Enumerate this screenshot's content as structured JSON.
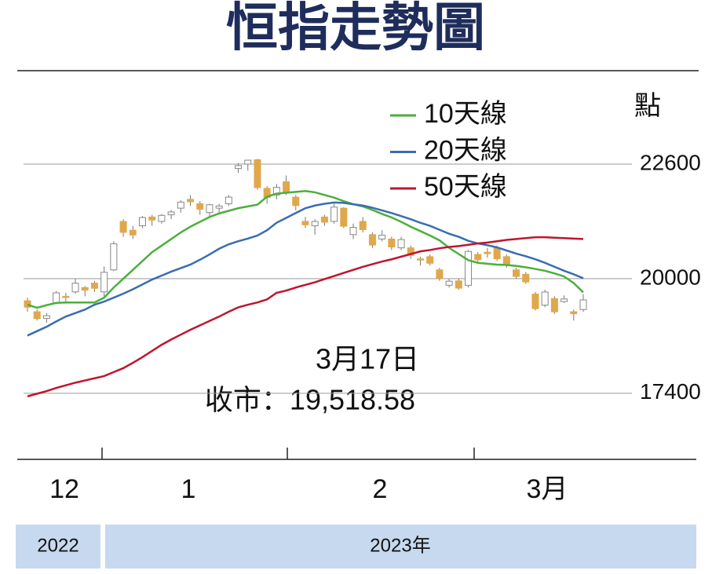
{
  "chart_data": {
    "type": "candlestick",
    "title": "恒指走勢圖",
    "y_label": "點",
    "categories": [
      null,
      null,
      null,
      null,
      null,
      null,
      null,
      null,
      null,
      null,
      null,
      null,
      null,
      null,
      null,
      null,
      null,
      null,
      null,
      null,
      null,
      null,
      null,
      null,
      null,
      null,
      null,
      null,
      null,
      null,
      null,
      null,
      null,
      null,
      null,
      null,
      null,
      null,
      null,
      null,
      null,
      null,
      null,
      null,
      null,
      null,
      null,
      null,
      null,
      null,
      null,
      null,
      null,
      null,
      null,
      null,
      null,
      null,
      null
    ],
    "open": [
      19500,
      19250,
      19100,
      19450,
      19600,
      19700,
      19800,
      19900,
      19700,
      20200,
      21300,
      21100,
      21200,
      21400,
      21300,
      21450,
      21600,
      21800,
      21700,
      21500,
      21600,
      21700,
      22500,
      22600,
      22700,
      22050,
      21900,
      22200,
      21850,
      21300,
      21200,
      21400,
      21300,
      21600,
      21000,
      21300,
      21000,
      20900,
      20900,
      20700,
      20700,
      20450,
      20500,
      20200,
      19850,
      19950,
      19850,
      20550,
      20600,
      20700,
      20500,
      20200,
      20100,
      19650,
      19400,
      19550,
      19480,
      19250,
      19300
    ],
    "high": [
      19570,
      19300,
      19220,
      19720,
      19680,
      20000,
      19830,
      19950,
      20280,
      20850,
      21350,
      21200,
      21420,
      21450,
      21470,
      21560,
      21780,
      21900,
      21760,
      21700,
      21700,
      21900,
      22620,
      22700,
      22720,
      22100,
      22150,
      22340,
      21900,
      21400,
      21350,
      21450,
      21700,
      21620,
      21250,
      21400,
      21050,
      21100,
      20950,
      20950,
      20750,
      20500,
      20550,
      20250,
      20000,
      20000,
      20650,
      20600,
      20700,
      20750,
      20550,
      20250,
      20150,
      19700,
      19750,
      19600,
      19620,
      19300,
      19650
    ],
    "low": [
      19250,
      19050,
      19000,
      19420,
      19480,
      19660,
      19600,
      19700,
      19600,
      20170,
      20950,
      20900,
      21150,
      21200,
      21250,
      21350,
      21500,
      21650,
      21450,
      21400,
      21480,
      21650,
      22400,
      22450,
      22020,
      21700,
      21800,
      21900,
      21550,
      21150,
      21000,
      21200,
      21250,
      21150,
      20900,
      21050,
      20700,
      20850,
      20650,
      20650,
      20450,
      20300,
      20300,
      19950,
      19800,
      19750,
      19800,
      20350,
      20480,
      20400,
      20250,
      20000,
      19880,
      19280,
      19350,
      19200,
      19450,
      19050,
      19250
    ],
    "close": [
      19352,
      19094,
      19160,
      19679,
      19593,
      19898,
      19741,
      19781,
      20145,
      20793,
      21052,
      20991,
      21388,
      21331,
      21436,
      21514,
      21738,
      21746,
      21578,
      21678,
      21650,
      21851,
      22566,
      22689,
      22069,
      21842,
      22072,
      21958,
      21660,
      21222,
      21298,
      21283,
      21624,
      21190,
      21164,
      21113,
      20764,
      20987,
      20719,
      20887,
      20529,
      20423,
      20351,
      20010,
      19943,
      19786,
      20619,
      20429,
      20568,
      20453,
      20315,
      20051,
      19926,
      19320,
      19696,
      19248,
      19539,
      19204,
      19518.58
    ],
    "up_color": "#ffffff",
    "down_color": "#e0a84a",
    "series": [
      {
        "name": "10天線",
        "color": "#4caf3c",
        "values": [
          19410,
          19340,
          19400,
          19450,
          19460,
          19460,
          19460,
          19460,
          19570,
          19800,
          20000,
          20200,
          20400,
          20600,
          20750,
          20900,
          21050,
          21180,
          21290,
          21400,
          21480,
          21540,
          21600,
          21640,
          21680,
          21860,
          21930,
          21950,
          21970,
          21990,
          21960,
          21900,
          21840,
          21760,
          21690,
          21640,
          21560,
          21470,
          21390,
          21290,
          21180,
          21080,
          20980,
          20870,
          20700,
          20560,
          20420,
          20360,
          20340,
          20320,
          20310,
          20290,
          20260,
          20220,
          20180,
          20120,
          20050,
          19900,
          19690
        ]
      },
      {
        "name": "20天線",
        "color": "#3a6db0",
        "values": [
          18710,
          18810,
          18910,
          19030,
          19140,
          19220,
          19300,
          19410,
          19480,
          19570,
          19660,
          19760,
          19870,
          19980,
          20070,
          20160,
          20240,
          20320,
          20430,
          20550,
          20680,
          20780,
          20850,
          20910,
          20980,
          21100,
          21270,
          21380,
          21490,
          21600,
          21660,
          21700,
          21730,
          21720,
          21690,
          21660,
          21610,
          21550,
          21490,
          21420,
          21350,
          21270,
          21200,
          21110,
          21020,
          20950,
          20860,
          20800,
          20760,
          20710,
          20640,
          20570,
          20510,
          20440,
          20360,
          20270,
          20180,
          20100,
          20010
        ]
      },
      {
        "name": "50天線",
        "color": "#c0142e",
        "values": [
          17330,
          17390,
          17450,
          17520,
          17580,
          17640,
          17690,
          17740,
          17790,
          17880,
          17970,
          18090,
          18220,
          18360,
          18500,
          18620,
          18730,
          18840,
          18940,
          19040,
          19140,
          19250,
          19350,
          19410,
          19460,
          19530,
          19680,
          19730,
          19800,
          19860,
          19920,
          19990,
          20060,
          20130,
          20200,
          20270,
          20330,
          20390,
          20440,
          20500,
          20560,
          20620,
          20650,
          20690,
          20720,
          20740,
          20770,
          20800,
          20820,
          20850,
          20880,
          20900,
          20920,
          20940,
          20940,
          20930,
          20920,
          20910,
          20900
        ]
      }
    ],
    "ylim": [
      15900,
      24400
    ],
    "yticks": [
      17400,
      20000,
      22600
    ],
    "grid": true,
    "month_labels": [
      "12",
      "1",
      "2",
      "3月"
    ],
    "years": [
      "2022",
      "2023年"
    ],
    "annotations": [
      "3月17日",
      "收市：19,518.58"
    ]
  }
}
